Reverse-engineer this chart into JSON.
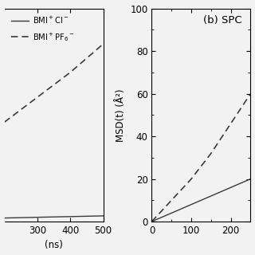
{
  "panel_a": {
    "x_solid": [
      200,
      250,
      300,
      350,
      400,
      450,
      500
    ],
    "y_solid": [
      1.0,
      1.1,
      1.2,
      1.3,
      1.4,
      1.5,
      1.6
    ],
    "x_dashed": [
      200,
      250,
      300,
      350,
      400,
      450,
      500
    ],
    "y_dashed": [
      28.0,
      31.5,
      35.0,
      38.5,
      42.0,
      46.0,
      50.0
    ],
    "xlim": [
      200,
      500
    ],
    "ylim": [
      0,
      60
    ],
    "xlabel": "(ns)",
    "yticks": [],
    "xticks": [
      300,
      400,
      500
    ]
  },
  "panel_b": {
    "label": "(b) SPC",
    "x_solid": [
      0,
      50,
      100,
      150,
      200,
      250
    ],
    "y_solid": [
      0,
      4,
      8,
      12,
      16,
      20
    ],
    "x_dashed": [
      0,
      50,
      100,
      150,
      200,
      250
    ],
    "y_dashed": [
      0,
      10,
      20,
      32,
      46,
      60
    ],
    "xlim": [
      0,
      250
    ],
    "ylim": [
      0,
      100
    ],
    "ylabel": "MSD(t) (Å²)",
    "yticks": [
      0,
      20,
      40,
      60,
      80,
      100
    ],
    "xticks": [
      0,
      100,
      200
    ]
  },
  "legend_solid": "BMI$^+$Cl$^-$",
  "legend_dashed": "BMI$^+$PF$_6$$^-$",
  "line_color": "#3a3a3a",
  "bg_color": "#f2f2f2",
  "font_size": 8.5,
  "label_font_size": 9.5
}
